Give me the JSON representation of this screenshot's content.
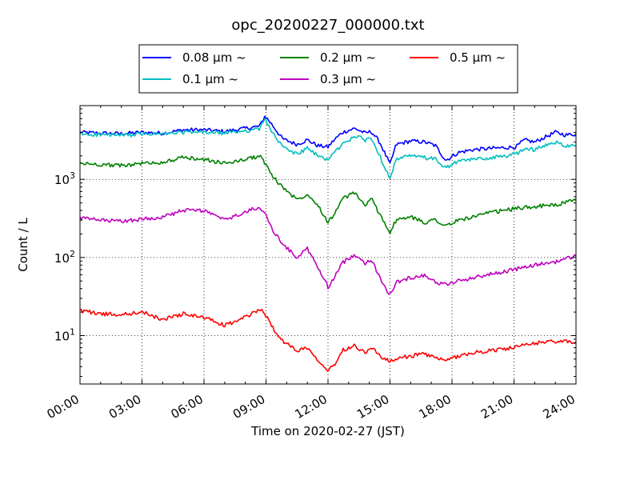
{
  "chart_data": {
    "type": "line",
    "title": "opc_20200227_000000.txt",
    "xlabel": "Time on 2020-02-27 (JST)",
    "ylabel": "Count / L",
    "x_unit": "hours",
    "xlim": [
      0,
      24
    ],
    "ylim": [
      2.4,
      8800
    ],
    "yscale": "log",
    "grid": true,
    "legend_position": "top-center",
    "x_tick_labels": [
      "00:00",
      "03:00",
      "06:00",
      "09:00",
      "12:00",
      "15:00",
      "18:00",
      "21:00",
      "24:00"
    ],
    "y_tick_labels": [
      {
        "value": 10,
        "base": "10",
        "exp": "1"
      },
      {
        "value": 100,
        "base": "10",
        "exp": "2"
      },
      {
        "value": 1000,
        "base": "10",
        "exp": "3"
      }
    ],
    "series": [
      {
        "name": "0.08 μm ~",
        "color": "#0000ff",
        "points": [
          [
            0,
            4000
          ],
          [
            1,
            3900
          ],
          [
            2,
            3850
          ],
          [
            3,
            4000
          ],
          [
            4,
            3900
          ],
          [
            5,
            4300
          ],
          [
            6,
            4300
          ],
          [
            7,
            4100
          ],
          [
            8,
            4500
          ],
          [
            8.7,
            4800
          ],
          [
            8.95,
            6500
          ],
          [
            9.3,
            5000
          ],
          [
            9.8,
            3300
          ],
          [
            10.5,
            2800
          ],
          [
            11,
            3200
          ],
          [
            11.5,
            2700
          ],
          [
            12,
            2600
          ],
          [
            12.3,
            3200
          ],
          [
            12.7,
            4000
          ],
          [
            13.3,
            4500
          ],
          [
            13.8,
            3900
          ],
          [
            14.1,
            4100
          ],
          [
            14.5,
            3000
          ],
          [
            15.0,
            1550
          ],
          [
            15.3,
            2800
          ],
          [
            16,
            3100
          ],
          [
            16.7,
            3000
          ],
          [
            17.2,
            2700
          ],
          [
            17.7,
            1750
          ],
          [
            18.3,
            2200
          ],
          [
            19,
            2400
          ],
          [
            20,
            2500
          ],
          [
            21.1,
            2600
          ],
          [
            21.5,
            3200
          ],
          [
            22,
            3000
          ],
          [
            23,
            4000
          ],
          [
            23.5,
            3700
          ],
          [
            24,
            3800
          ]
        ]
      },
      {
        "name": "0.1 μm ~",
        "color": "#00bfbf",
        "points": [
          [
            0,
            3800
          ],
          [
            1,
            3750
          ],
          [
            2,
            3650
          ],
          [
            3,
            3800
          ],
          [
            4,
            3800
          ],
          [
            5,
            4000
          ],
          [
            6,
            4000
          ],
          [
            7,
            3900
          ],
          [
            8,
            4200
          ],
          [
            8.7,
            4400
          ],
          [
            8.95,
            6000
          ],
          [
            9.3,
            4000
          ],
          [
            9.8,
            2600
          ],
          [
            10.5,
            2100
          ],
          [
            11,
            2500
          ],
          [
            11.5,
            2000
          ],
          [
            12,
            1800
          ],
          [
            12.3,
            2200
          ],
          [
            12.7,
            2800
          ],
          [
            13.3,
            3600
          ],
          [
            13.8,
            3200
          ],
          [
            14.1,
            3400
          ],
          [
            14.5,
            2000
          ],
          [
            15.0,
            1050
          ],
          [
            15.3,
            1800
          ],
          [
            16,
            2000
          ],
          [
            16.7,
            1900
          ],
          [
            17.2,
            1800
          ],
          [
            17.7,
            1400
          ],
          [
            18.3,
            1700
          ],
          [
            19,
            1800
          ],
          [
            20,
            1900
          ],
          [
            21.1,
            2100
          ],
          [
            21.5,
            2500
          ],
          [
            22,
            2400
          ],
          [
            23,
            3000
          ],
          [
            23.5,
            2700
          ],
          [
            24,
            2800
          ]
        ]
      },
      {
        "name": "0.2 μm ~",
        "color": "#008000",
        "points": [
          [
            0,
            1600
          ],
          [
            1,
            1550
          ],
          [
            2,
            1500
          ],
          [
            3,
            1600
          ],
          [
            4,
            1650
          ],
          [
            5,
            1900
          ],
          [
            6,
            1800
          ],
          [
            7,
            1600
          ],
          [
            8,
            1800
          ],
          [
            8.7,
            2000
          ],
          [
            9.0,
            1550
          ],
          [
            9.3,
            1100
          ],
          [
            9.8,
            800
          ],
          [
            10.5,
            550
          ],
          [
            11,
            650
          ],
          [
            11.5,
            480
          ],
          [
            12,
            280
          ],
          [
            12.3,
            360
          ],
          [
            12.7,
            560
          ],
          [
            13.3,
            680
          ],
          [
            13.8,
            460
          ],
          [
            14.1,
            560
          ],
          [
            14.5,
            360
          ],
          [
            15.0,
            210
          ],
          [
            15.3,
            300
          ],
          [
            16,
            330
          ],
          [
            16.7,
            280
          ],
          [
            17.2,
            310
          ],
          [
            17.7,
            250
          ],
          [
            18.3,
            300
          ],
          [
            19,
            330
          ],
          [
            20,
            380
          ],
          [
            21,
            420
          ],
          [
            22,
            450
          ],
          [
            23,
            470
          ],
          [
            24,
            540
          ]
        ]
      },
      {
        "name": "0.3 μm ~",
        "color": "#bf00bf",
        "points": [
          [
            0,
            320
          ],
          [
            1,
            300
          ],
          [
            2,
            290
          ],
          [
            3,
            310
          ],
          [
            4,
            330
          ],
          [
            5,
            400
          ],
          [
            6,
            400
          ],
          [
            7,
            300
          ],
          [
            8,
            380
          ],
          [
            8.7,
            450
          ],
          [
            9.0,
            340
          ],
          [
            9.3,
            230
          ],
          [
            9.8,
            150
          ],
          [
            10.5,
            100
          ],
          [
            11,
            130
          ],
          [
            11.5,
            75
          ],
          [
            12,
            42
          ],
          [
            12.3,
            55
          ],
          [
            12.7,
            85
          ],
          [
            13.3,
            110
          ],
          [
            13.8,
            85
          ],
          [
            14.1,
            95
          ],
          [
            14.5,
            55
          ],
          [
            15.0,
            33
          ],
          [
            15.3,
            48
          ],
          [
            16,
            55
          ],
          [
            16.7,
            60
          ],
          [
            17.2,
            48
          ],
          [
            17.7,
            45
          ],
          [
            18.3,
            50
          ],
          [
            19,
            55
          ],
          [
            20,
            62
          ],
          [
            21,
            70
          ],
          [
            22,
            80
          ],
          [
            23,
            88
          ],
          [
            24,
            105
          ]
        ]
      },
      {
        "name": "0.5 μm ~",
        "color": "#ff0000",
        "points": [
          [
            0,
            21
          ],
          [
            1,
            19
          ],
          [
            2,
            18.5
          ],
          [
            3,
            20
          ],
          [
            4,
            16
          ],
          [
            5,
            19
          ],
          [
            6,
            17
          ],
          [
            7,
            13.5
          ],
          [
            8,
            17
          ],
          [
            8.7,
            22
          ],
          [
            9.0,
            18
          ],
          [
            9.3,
            13
          ],
          [
            9.8,
            8.5
          ],
          [
            10.5,
            6.5
          ],
          [
            11,
            7
          ],
          [
            11.5,
            5
          ],
          [
            12,
            3.6
          ],
          [
            12.3,
            4.2
          ],
          [
            12.7,
            6.5
          ],
          [
            13.3,
            7.5
          ],
          [
            13.8,
            6
          ],
          [
            14.1,
            7.2
          ],
          [
            14.5,
            5.5
          ],
          [
            15.0,
            4.6
          ],
          [
            15.3,
            5
          ],
          [
            16,
            5.5
          ],
          [
            16.7,
            5.8
          ],
          [
            17.2,
            5.2
          ],
          [
            17.7,
            4.7
          ],
          [
            18.3,
            5.5
          ],
          [
            19,
            6
          ],
          [
            20,
            6.5
          ],
          [
            21,
            7
          ],
          [
            22,
            8
          ],
          [
            23,
            8.5
          ],
          [
            24,
            8.2
          ]
        ]
      }
    ]
  }
}
